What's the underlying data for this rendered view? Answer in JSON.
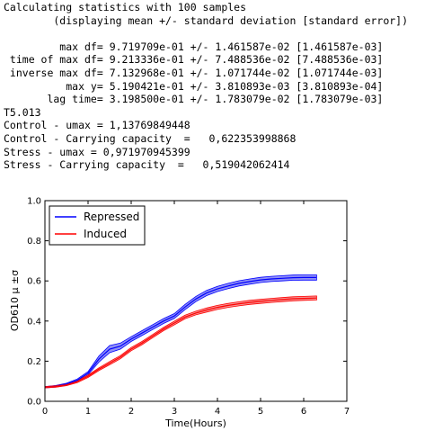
{
  "console": {
    "lines": [
      "Calculating statistics with 100 samples",
      "        (displaying mean +/- standard deviation [standard error])",
      "",
      "         max df= 9.719709e-01 +/- 1.461587e-02 [1.461587e-03]",
      " time of max df= 9.213336e-01 +/- 7.488536e-02 [7.488536e-03]",
      " inverse max df= 7.132968e-01 +/- 1.071744e-02 [1.071744e-03]",
      "          max y= 5.190421e-01 +/- 3.810893e-03 [3.810893e-04]",
      "       lag time= 3.198500e-01 +/- 1.783079e-02 [1.783079e-03]",
      "T5.013",
      "Control - umax = 1,13769849448",
      "Control - Carrying capacity  =   0,622353998868",
      "Stress - umax = 0,971970945399",
      "Stress - Carrying capacity  =   0,519042062414"
    ]
  },
  "chart_data": {
    "type": "line",
    "title": "",
    "xlabel": "Time(Hours)",
    "ylabel": "OD610 μ ±σ",
    "xlim": [
      0,
      7
    ],
    "ylim": [
      0.0,
      1.0
    ],
    "xticks": [
      0,
      1,
      2,
      3,
      4,
      5,
      6,
      7
    ],
    "yticks": [
      0.0,
      0.2,
      0.4,
      0.6,
      0.8,
      1.0
    ],
    "xtick_labels": [
      "0",
      "1",
      "2",
      "3",
      "4",
      "5",
      "6",
      "7"
    ],
    "ytick_labels": [
      "0.0",
      "0.2",
      "0.4",
      "0.6",
      "0.8",
      "1.0"
    ],
    "grid": false,
    "legend_position": "top-left",
    "x": [
      0.0,
      0.25,
      0.5,
      0.75,
      1.0,
      1.25,
      1.5,
      1.75,
      2.0,
      2.25,
      2.5,
      2.75,
      3.0,
      3.25,
      3.5,
      3.75,
      4.0,
      4.25,
      4.5,
      4.75,
      5.0,
      5.25,
      5.5,
      5.75,
      6.0,
      6.3
    ],
    "series": [
      {
        "name": "Repressed",
        "color": "#0000ff",
        "band_color": "#6a6af0",
        "mean": [
          0.07,
          0.075,
          0.085,
          0.105,
          0.14,
          0.21,
          0.26,
          0.275,
          0.31,
          0.34,
          0.37,
          0.4,
          0.425,
          0.47,
          0.51,
          0.54,
          0.56,
          0.575,
          0.588,
          0.597,
          0.605,
          0.61,
          0.613,
          0.616,
          0.617,
          0.617
        ],
        "std": [
          0.003,
          0.004,
          0.005,
          0.006,
          0.008,
          0.015,
          0.018,
          0.015,
          0.012,
          0.012,
          0.012,
          0.012,
          0.012,
          0.013,
          0.013,
          0.013,
          0.013,
          0.013,
          0.013,
          0.013,
          0.013,
          0.013,
          0.013,
          0.013,
          0.013,
          0.013
        ]
      },
      {
        "name": "Induced",
        "color": "#ff0000",
        "band_color": "#f07070",
        "mean": [
          0.07,
          0.074,
          0.082,
          0.098,
          0.125,
          0.16,
          0.19,
          0.22,
          0.26,
          0.29,
          0.325,
          0.36,
          0.39,
          0.42,
          0.44,
          0.455,
          0.468,
          0.478,
          0.486,
          0.493,
          0.498,
          0.503,
          0.507,
          0.511,
          0.513,
          0.515
        ],
        "std": [
          0.003,
          0.004,
          0.004,
          0.005,
          0.006,
          0.007,
          0.008,
          0.008,
          0.008,
          0.008,
          0.008,
          0.008,
          0.009,
          0.009,
          0.009,
          0.01,
          0.01,
          0.01,
          0.01,
          0.01,
          0.01,
          0.01,
          0.01,
          0.01,
          0.01,
          0.01
        ]
      }
    ]
  }
}
